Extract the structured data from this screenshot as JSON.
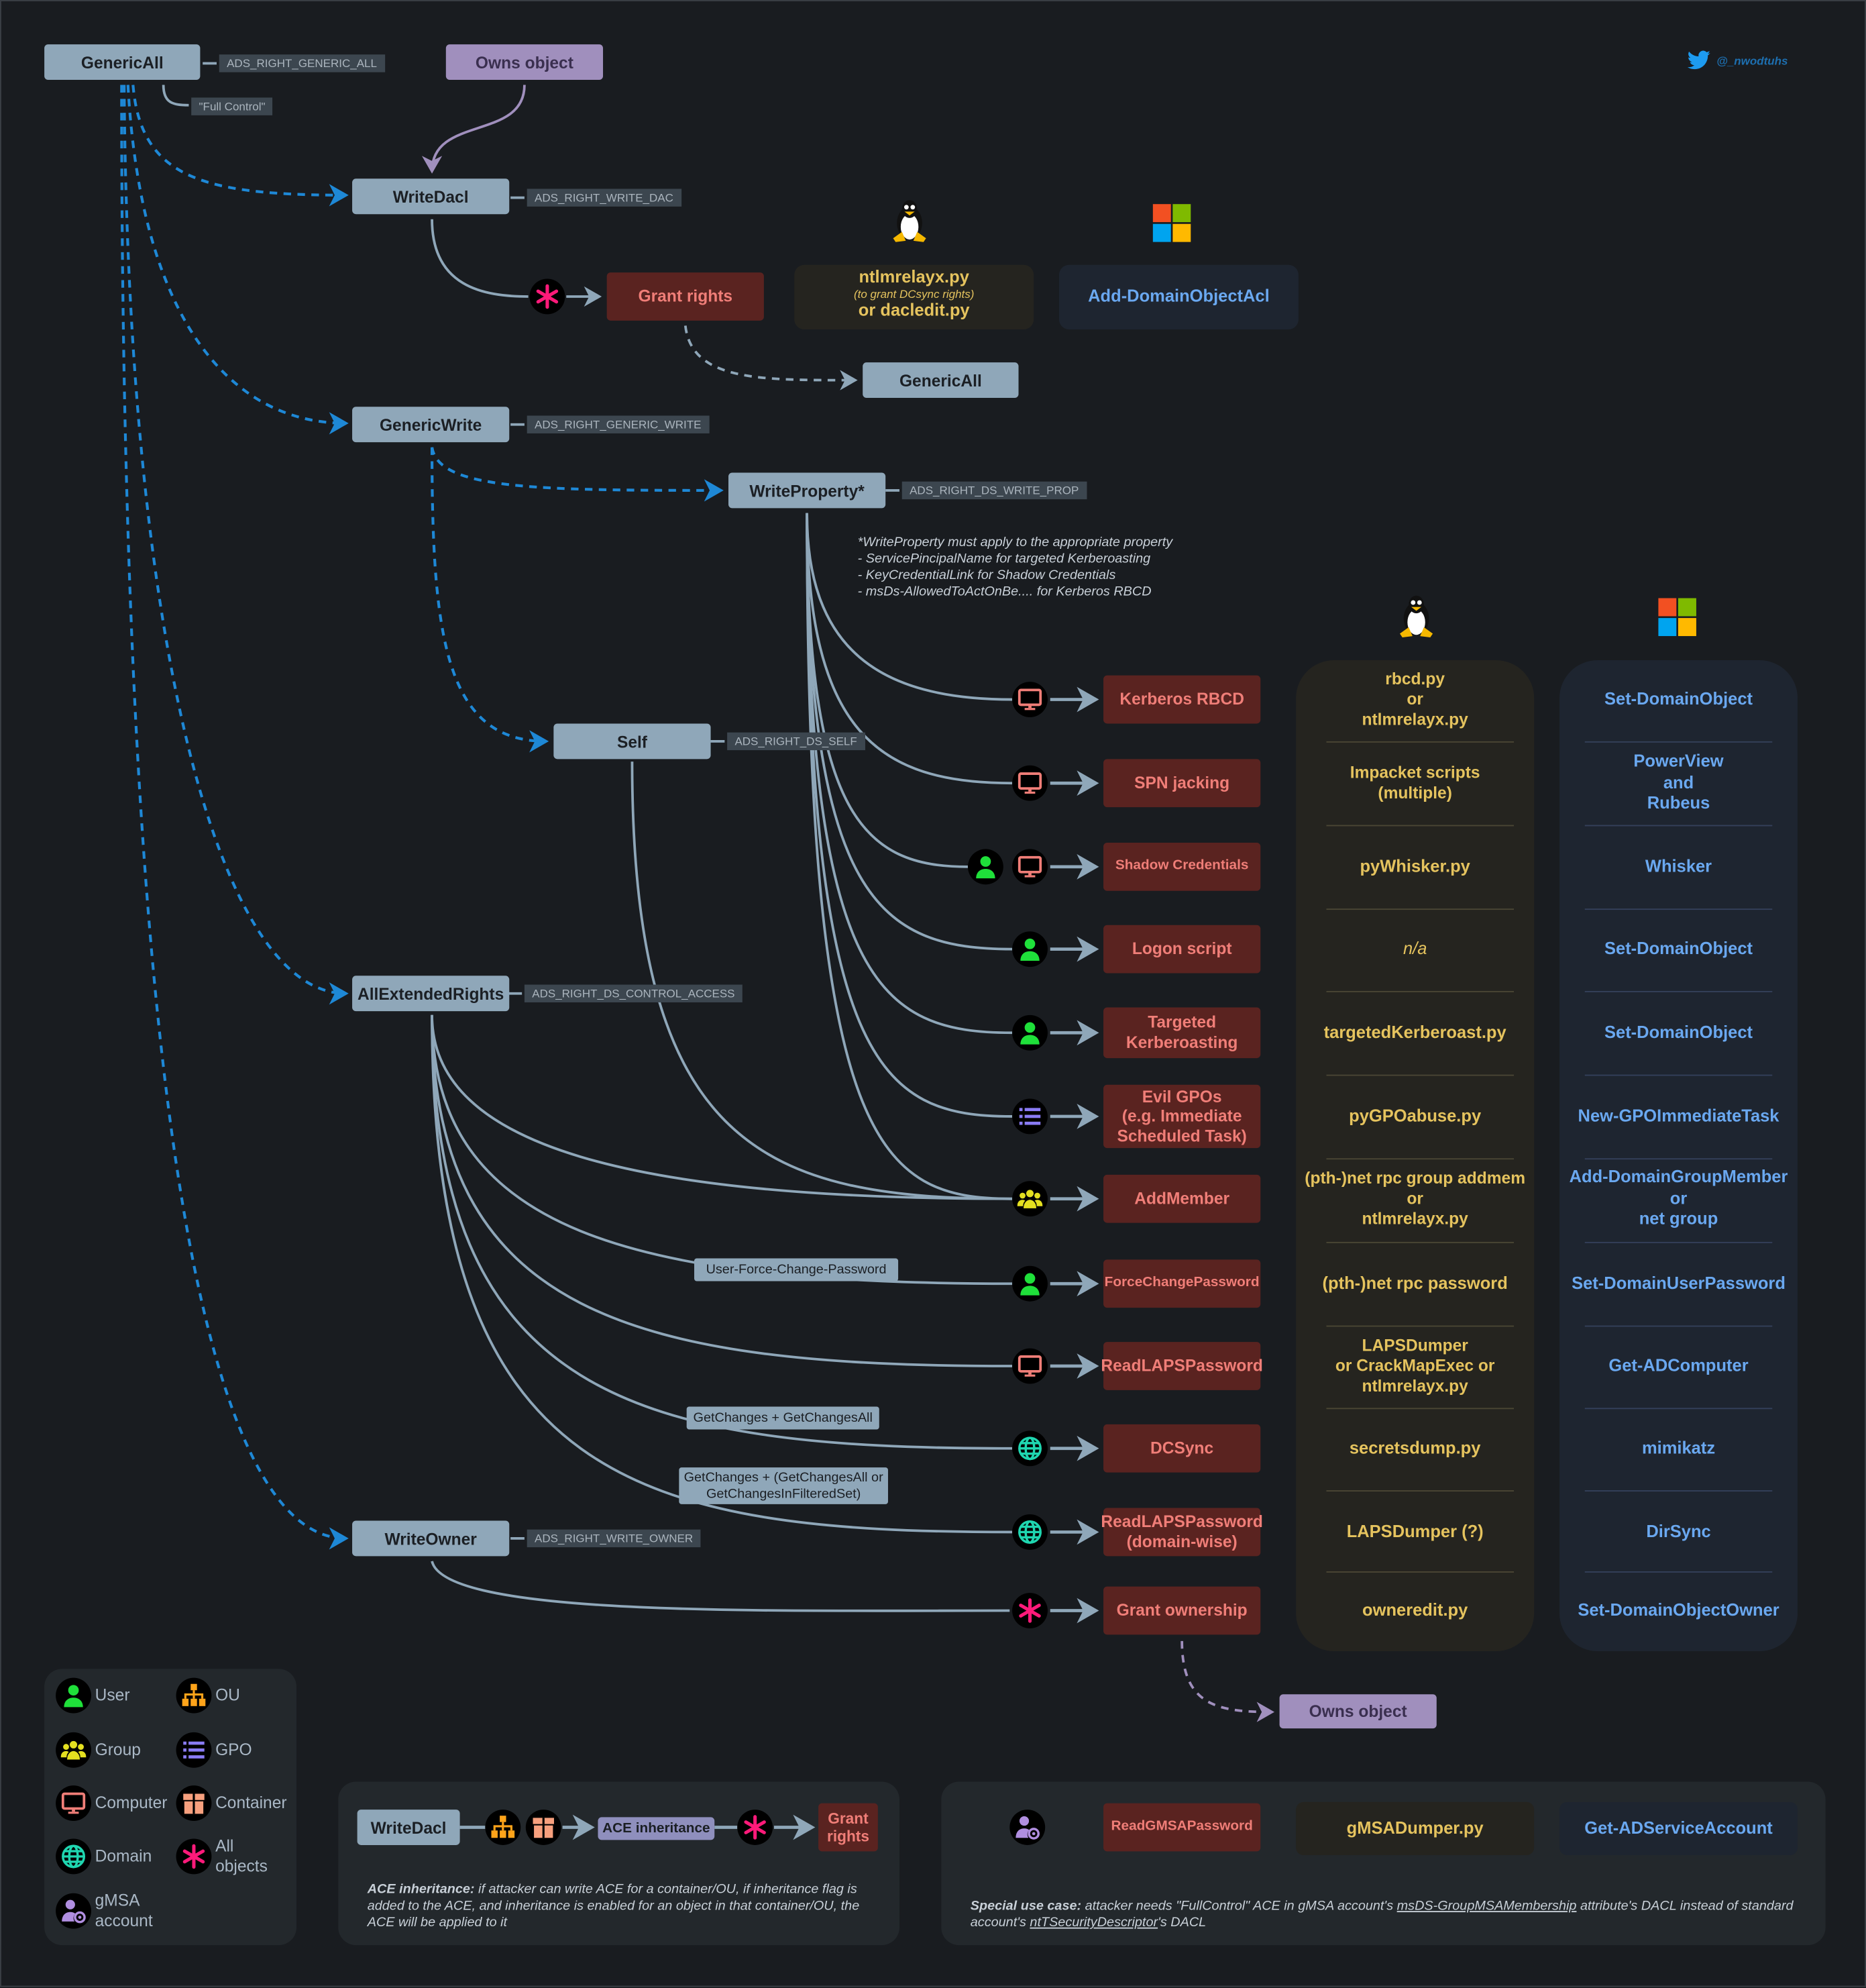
{
  "colors": {
    "background": "#191c20",
    "node": "#8fa7b9",
    "owns": "#a08fbd",
    "action_bg": "#5a2320",
    "action_text": "#f07e78",
    "linux_bg": "#25241f",
    "linux_text": "#e5c35e",
    "windows_bg": "#1e2530",
    "windows_text": "#6aa8f0",
    "dashed_edge": "#1e88d6",
    "solid_edge": "#8fa7b9"
  },
  "author": {
    "icon": "twitter-icon",
    "handle": "@_nwodtuhs"
  },
  "nodes": {
    "generic_all": {
      "label": "GenericAll",
      "tag": "ADS_RIGHT_GENERIC_ALL",
      "alias": "\"Full Control\""
    },
    "owns_object": {
      "label": "Owns object"
    },
    "write_dacl": {
      "label": "WriteDacl",
      "tag": "ADS_RIGHT_WRITE_DAC"
    },
    "grant_rights": {
      "label": "Grant rights"
    },
    "generic_all_result": {
      "label": "GenericAll"
    },
    "generic_write": {
      "label": "GenericWrite",
      "tag": "ADS_RIGHT_GENERIC_WRITE"
    },
    "write_property": {
      "label": "WriteProperty*",
      "tag": "ADS_RIGHT_DS_WRITE_PROP"
    },
    "self": {
      "label": "Self",
      "tag": "ADS_RIGHT_DS_SELF"
    },
    "all_extended_rights": {
      "label": "AllExtendedRights",
      "tag": "ADS_RIGHT_DS_CONTROL_ACCESS"
    },
    "write_owner": {
      "label": "WriteOwner",
      "tag": "ADS_RIGHT_WRITE_OWNER"
    },
    "owns_object_result": {
      "label": "Owns object"
    }
  },
  "grant_rights_tools": {
    "linux": {
      "line1": "ntlmrelayx.py",
      "line2": "(to grant DCsync rights)",
      "line3": "or dacledit.py"
    },
    "windows": "Add-DomainObjectAcl"
  },
  "write_property_note": "*WriteProperty must apply to the appropriate property\n- ServicePincipalName for targeted Kerberoasting\n- KeyCredentialLink for Shadow Credentials\n- msDs-AllowedToActOnBe.... for Kerberos RBCD",
  "edge_labels": {
    "force_change": "User-Force-Change-Password",
    "dcsync": "GetChanges + GetChangesAll",
    "laps_domain": "GetChanges + (GetChangesAll or\nGetChangesInFilteredSet)"
  },
  "columns": {
    "linux_icon": "linux-tux-icon",
    "windows_icon": "windows-logo-icon"
  },
  "rows": [
    {
      "action": "Kerberos RBCD",
      "icons": [
        "computer"
      ],
      "linux": "rbcd.py\nor\nntlmrelayx.py",
      "windows": "Set-DomainObject"
    },
    {
      "action": "SPN jacking",
      "icons": [
        "computer"
      ],
      "linux": "Impacket scripts\n(multiple)",
      "windows": "PowerView\nand\nRubeus"
    },
    {
      "action": "Shadow Credentials",
      "icons": [
        "user",
        "computer"
      ],
      "linux": "pyWhisker.py",
      "windows": "Whisker"
    },
    {
      "action": "Logon script",
      "icons": [
        "user"
      ],
      "linux": "n/a",
      "windows": "Set-DomainObject"
    },
    {
      "action": "Targeted\nKerberoasting",
      "icons": [
        "user"
      ],
      "linux": "targetedKerberoast.py",
      "windows": "Set-DomainObject"
    },
    {
      "action": "Evil GPOs\n(e.g. Immediate\nScheduled Task)",
      "icons": [
        "gpo"
      ],
      "linux": "pyGPOabuse.py",
      "windows": "New-GPOImmediateTask"
    },
    {
      "action": "AddMember",
      "icons": [
        "group"
      ],
      "linux": "(pth-)net rpc group addmem\nor\nntlmrelayx.py",
      "windows": "Add-DomainGroupMember\nor\nnet group"
    },
    {
      "action": "ForceChangePassword",
      "icons": [
        "user"
      ],
      "linux": "(pth-)net rpc password",
      "windows": "Set-DomainUserPassword"
    },
    {
      "action": "ReadLAPSPassword",
      "icons": [
        "computer"
      ],
      "linux": "LAPSDumper\nor CrackMapExec or\nntlmrelayx.py",
      "windows": "Get-ADComputer"
    },
    {
      "action": "DCSync",
      "icons": [
        "domain"
      ],
      "linux": "secretsdump.py",
      "windows": "mimikatz"
    },
    {
      "action": "ReadLAPSPassword\n(domain-wise)",
      "icons": [
        "domain"
      ],
      "linux": "LAPSDumper (?)",
      "windows": "DirSync"
    },
    {
      "action": "Grant ownership",
      "icons": [
        "all"
      ],
      "linux": "owneredit.py",
      "windows": "Set-DomainObjectOwner"
    }
  ],
  "legend": [
    {
      "icon": "user",
      "label": "User"
    },
    {
      "icon": "ou",
      "label": "OU"
    },
    {
      "icon": "group",
      "label": "Group"
    },
    {
      "icon": "gpo",
      "label": "GPO"
    },
    {
      "icon": "computer",
      "label": "Computer"
    },
    {
      "icon": "container",
      "label": "Container"
    },
    {
      "icon": "domain",
      "label": "Domain"
    },
    {
      "icon": "all",
      "label": "All\nobjects"
    },
    {
      "icon": "gmsa",
      "label": "gMSA\naccount"
    }
  ],
  "ace_inheritance": {
    "node": "WriteDacl",
    "step": "ACE inheritance",
    "result": "Grant\nrights",
    "note_bold": "ACE inheritance:",
    "note": " if attacker can write ACE for a container/OU, if inheritance flag is added to the ACE, and inheritance is enabled for an object in that container/OU, the ACE will be applied to it"
  },
  "gmsa": {
    "action": "ReadGMSAPassword",
    "linux": "gMSADumper.py",
    "windows": "Get-ADServiceAccount",
    "note_bold": "Special use case:",
    "note_1": " attacker needs \"FullControl\" ACE in gMSA account's ",
    "note_link1": "msDS-GroupMSAMembership",
    "note_2": " attribute's DACL instead of standard account's ",
    "note_link2": "ntTSecurityDescriptor",
    "note_3": "'s DACL"
  }
}
